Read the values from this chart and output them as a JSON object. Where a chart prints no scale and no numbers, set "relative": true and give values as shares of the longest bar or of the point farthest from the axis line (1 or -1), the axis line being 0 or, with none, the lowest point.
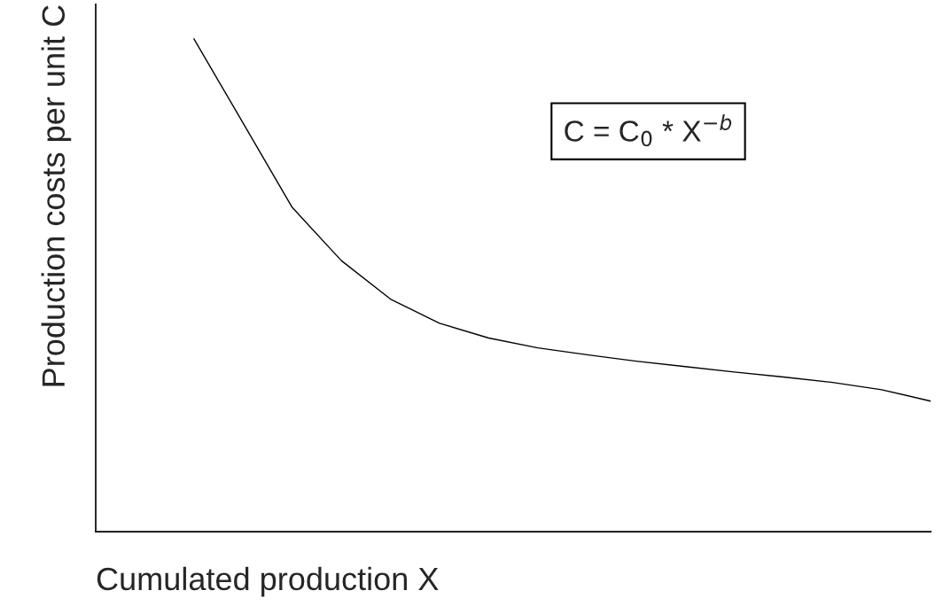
{
  "chart_data": {
    "type": "line",
    "relative": true,
    "xlabel": "Cumulated production X",
    "ylabel": "Production costs per unit C",
    "categories": [
      null,
      null,
      null,
      null,
      null,
      null,
      null,
      null,
      null,
      null,
      null,
      null,
      null,
      null,
      null,
      null,
      null,
      null
    ],
    "series": [
      {
        "color": "#000000",
        "values": [
          null,
          null,
          1.0,
          0.829,
          0.658,
          0.55,
          0.472,
          0.423,
          0.393,
          0.373,
          0.359,
          0.346,
          0.335,
          0.324,
          0.314,
          0.303,
          0.288,
          0.265
        ]
      }
    ],
    "annotations": [
      "C = C$_{0}$ * X$^{−b}$"
    ],
    "grid": false,
    "legend": false,
    "marker": "none",
    "line_style": "solid"
  }
}
